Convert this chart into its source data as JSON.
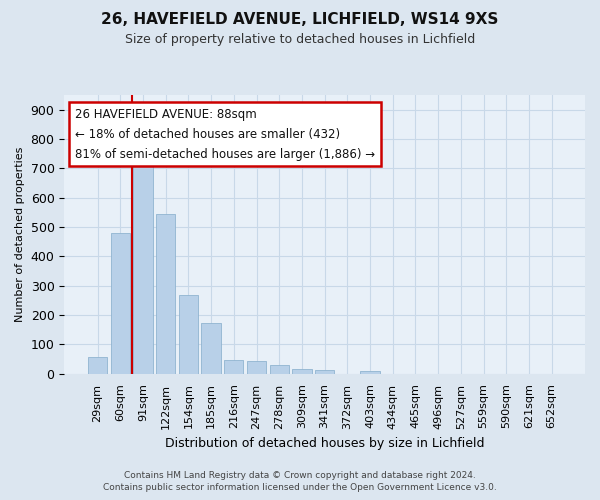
{
  "title1": "26, HAVEFIELD AVENUE, LICHFIELD, WS14 9XS",
  "title2": "Size of property relative to detached houses in Lichfield",
  "xlabel": "Distribution of detached houses by size in Lichfield",
  "ylabel": "Number of detached properties",
  "categories": [
    "29sqm",
    "60sqm",
    "91sqm",
    "122sqm",
    "154sqm",
    "185sqm",
    "216sqm",
    "247sqm",
    "278sqm",
    "309sqm",
    "341sqm",
    "372sqm",
    "403sqm",
    "434sqm",
    "465sqm",
    "496sqm",
    "527sqm",
    "559sqm",
    "590sqm",
    "621sqm",
    "652sqm"
  ],
  "values": [
    57,
    480,
    720,
    543,
    270,
    172,
    47,
    45,
    30,
    17,
    14,
    0,
    8,
    0,
    0,
    0,
    0,
    0,
    0,
    0,
    0
  ],
  "bar_color": "#b8d0e8",
  "bar_edge_color": "#90b4d0",
  "vline_color": "#cc0000",
  "vline_x_index": 2,
  "annotation_line1": "26 HAVEFIELD AVENUE: 88sqm",
  "annotation_line2": "← 18% of detached houses are smaller (432)",
  "annotation_line3": "81% of semi-detached houses are larger (1,886) →",
  "annotation_box_edgecolor": "#cc0000",
  "ylim": [
    0,
    950
  ],
  "yticks": [
    0,
    100,
    200,
    300,
    400,
    500,
    600,
    700,
    800,
    900
  ],
  "footer1": "Contains HM Land Registry data © Crown copyright and database right 2024.",
  "footer2": "Contains public sector information licensed under the Open Government Licence v3.0.",
  "fig_bg_color": "#dce6f0",
  "plot_bg_color": "#e8f0f8",
  "grid_color": "#c8d8e8",
  "title1_fontsize": 11,
  "title2_fontsize": 9,
  "ylabel_fontsize": 8,
  "xlabel_fontsize": 9,
  "ytick_fontsize": 9,
  "xtick_fontsize": 8
}
